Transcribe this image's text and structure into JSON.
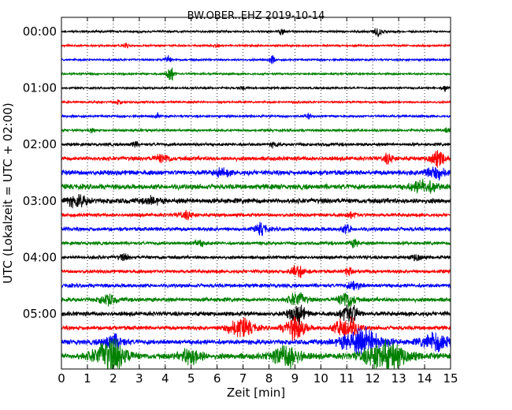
{
  "chart_data": {
    "type": "line",
    "title": "BW.OBER..EHZ 2019-10-14",
    "xlabel": "Zeit  [min]",
    "ylabel": "UTC (Lokalzeit = UTC + 02:00)",
    "xlim": [
      0,
      15
    ],
    "x_ticks": [
      "0",
      "1",
      "2",
      "3",
      "4",
      "5",
      "6",
      "7",
      "8",
      "9",
      "10",
      "11",
      "12",
      "13",
      "14",
      "15"
    ],
    "y_ticks": [
      "00:00",
      "01:00",
      "02:00",
      "03:00",
      "04:00",
      "05:00"
    ],
    "grid": "vertical-dotted",
    "colors": [
      "#000000",
      "#ff0000",
      "#0000ff",
      "#008000"
    ],
    "trace_interval_min": 15,
    "traces": [
      {
        "start": "00:00",
        "noise": 0.18,
        "events": [
          {
            "t": 8.5,
            "a": 0.6,
            "w": 0.12
          },
          {
            "t": 12.2,
            "a": 0.9,
            "w": 0.2
          }
        ]
      },
      {
        "start": "00:15",
        "noise": 0.18,
        "events": [
          {
            "t": 2.5,
            "a": 0.4,
            "w": 0.12
          },
          {
            "t": 6.0,
            "a": 0.3,
            "w": 0.1
          }
        ]
      },
      {
        "start": "00:30",
        "noise": 0.18,
        "events": [
          {
            "t": 4.1,
            "a": 0.7,
            "w": 0.12
          },
          {
            "t": 8.1,
            "a": 0.8,
            "w": 0.12
          }
        ]
      },
      {
        "start": "00:45",
        "noise": 0.18,
        "events": [
          {
            "t": 4.2,
            "a": 1.5,
            "w": 0.15
          }
        ]
      },
      {
        "start": "01:00",
        "noise": 0.18,
        "events": [
          {
            "t": 7.0,
            "a": 0.3,
            "w": 0.1
          },
          {
            "t": 14.8,
            "a": 0.6,
            "w": 0.1
          }
        ]
      },
      {
        "start": "01:15",
        "noise": 0.18,
        "events": [
          {
            "t": 2.2,
            "a": 0.4,
            "w": 0.12
          },
          {
            "t": 9.0,
            "a": 0.3,
            "w": 0.12
          }
        ]
      },
      {
        "start": "01:30",
        "noise": 0.2,
        "events": [
          {
            "t": 3.7,
            "a": 0.5,
            "w": 0.1
          },
          {
            "t": 9.5,
            "a": 0.4,
            "w": 0.12
          }
        ]
      },
      {
        "start": "01:45",
        "noise": 0.22,
        "events": [
          {
            "t": 1.2,
            "a": 0.4,
            "w": 0.1
          },
          {
            "t": 14.9,
            "a": 0.8,
            "w": 0.1
          }
        ]
      },
      {
        "start": "02:00",
        "noise": 0.28,
        "events": [
          {
            "t": 2.8,
            "a": 0.5,
            "w": 0.12
          },
          {
            "t": 8.2,
            "a": 0.5,
            "w": 0.12
          }
        ]
      },
      {
        "start": "02:15",
        "noise": 0.38,
        "events": [
          {
            "t": 3.9,
            "a": 0.7,
            "w": 0.3
          },
          {
            "t": 12.6,
            "a": 0.8,
            "w": 0.2
          },
          {
            "t": 14.5,
            "a": 1.3,
            "w": 0.3
          }
        ]
      },
      {
        "start": "02:30",
        "noise": 0.45,
        "events": [
          {
            "t": 6.2,
            "a": 0.6,
            "w": 0.3
          },
          {
            "t": 14.4,
            "a": 1.1,
            "w": 0.4
          }
        ]
      },
      {
        "start": "02:45",
        "noise": 0.48,
        "events": [
          {
            "t": 14.0,
            "a": 1.0,
            "w": 0.5
          }
        ]
      },
      {
        "start": "03:00",
        "noise": 0.48,
        "events": [
          {
            "t": 0.6,
            "a": 0.9,
            "w": 0.4
          },
          {
            "t": 3.5,
            "a": 0.6,
            "w": 0.3
          }
        ]
      },
      {
        "start": "03:15",
        "noise": 0.32,
        "events": [
          {
            "t": 4.8,
            "a": 0.6,
            "w": 0.3
          },
          {
            "t": 11.2,
            "a": 0.5,
            "w": 0.2
          }
        ]
      },
      {
        "start": "03:30",
        "noise": 0.36,
        "events": [
          {
            "t": 7.7,
            "a": 1.0,
            "w": 0.2
          },
          {
            "t": 11.0,
            "a": 0.6,
            "w": 0.2
          }
        ]
      },
      {
        "start": "03:45",
        "noise": 0.3,
        "events": [
          {
            "t": 5.3,
            "a": 0.5,
            "w": 0.25
          },
          {
            "t": 11.3,
            "a": 0.6,
            "w": 0.2
          }
        ]
      },
      {
        "start": "04:00",
        "noise": 0.3,
        "events": [
          {
            "t": 2.4,
            "a": 0.5,
            "w": 0.2
          },
          {
            "t": 13.7,
            "a": 0.6,
            "w": 0.2
          }
        ]
      },
      {
        "start": "04:15",
        "noise": 0.32,
        "events": [
          {
            "t": 9.1,
            "a": 1.0,
            "w": 0.3
          },
          {
            "t": 11.1,
            "a": 0.6,
            "w": 0.2
          }
        ]
      },
      {
        "start": "04:30",
        "noise": 0.35,
        "events": [
          {
            "t": 11.3,
            "a": 0.8,
            "w": 0.25
          }
        ]
      },
      {
        "start": "04:45",
        "noise": 0.38,
        "events": [
          {
            "t": 1.8,
            "a": 0.9,
            "w": 0.3
          },
          {
            "t": 9.1,
            "a": 1.3,
            "w": 0.3
          },
          {
            "t": 11.0,
            "a": 1.5,
            "w": 0.3
          }
        ]
      },
      {
        "start": "05:00",
        "noise": 0.4,
        "events": [
          {
            "t": 9.1,
            "a": 1.8,
            "w": 0.3
          },
          {
            "t": 11.1,
            "a": 2.0,
            "w": 0.3
          }
        ]
      },
      {
        "start": "05:15",
        "noise": 0.38,
        "events": [
          {
            "t": 6.9,
            "a": 1.6,
            "w": 0.5
          },
          {
            "t": 9.0,
            "a": 2.0,
            "w": 0.4
          },
          {
            "t": 11.0,
            "a": 2.2,
            "w": 0.4
          }
        ]
      },
      {
        "start": "05:30",
        "noise": 0.45,
        "events": [
          {
            "t": 2.0,
            "a": 1.2,
            "w": 0.4
          },
          {
            "t": 11.6,
            "a": 2.2,
            "w": 0.8
          },
          {
            "t": 14.5,
            "a": 1.6,
            "w": 0.6
          }
        ]
      },
      {
        "start": "05:45",
        "noise": 0.55,
        "events": [
          {
            "t": 1.9,
            "a": 3.0,
            "w": 0.6
          },
          {
            "t": 5.0,
            "a": 1.5,
            "w": 0.4
          },
          {
            "t": 8.7,
            "a": 2.0,
            "w": 0.5
          },
          {
            "t": 12.5,
            "a": 2.5,
            "w": 0.8
          }
        ]
      }
    ]
  }
}
